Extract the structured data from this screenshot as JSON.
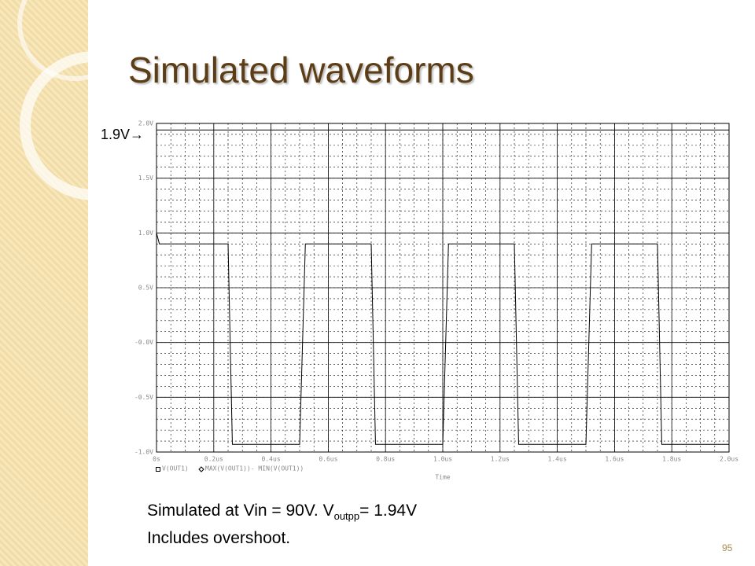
{
  "slide": {
    "title": "Simulated waveforms",
    "page_number": "95",
    "caption": {
      "text": "Simulated at Vin = 90V. V",
      "subscript": "outpp",
      "tail": "= 1.94V",
      "line2": "Includes overshoot."
    }
  },
  "chart_data": {
    "type": "line",
    "annotation": "1.9V→",
    "x_label": "Time",
    "xlim": [
      0,
      2.0
    ],
    "xticks": [
      {
        "value": 0,
        "label": "0s"
      },
      {
        "value": 0.2,
        "label": "0.2us"
      },
      {
        "value": 0.4,
        "label": "0.4us"
      },
      {
        "value": 0.6,
        "label": "0.6us"
      },
      {
        "value": 0.8,
        "label": "0.8us"
      },
      {
        "value": 1.0,
        "label": "1.0us"
      },
      {
        "value": 1.2,
        "label": "1.2us"
      },
      {
        "value": 1.4,
        "label": "1.4us"
      },
      {
        "value": 1.6,
        "label": "1.6us"
      },
      {
        "value": 1.8,
        "label": "1.8us"
      },
      {
        "value": 2.0,
        "label": "2.0us"
      }
    ],
    "ylim": [
      -1.0,
      2.0
    ],
    "yticks": [
      {
        "value": -1.0,
        "label": "-1.0V"
      },
      {
        "value": -0.5,
        "label": "-0.5V"
      },
      {
        "value": 0,
        "label": "-0.0V"
      },
      {
        "value": 0.5,
        "label": "0.5V"
      },
      {
        "value": 1.0,
        "label": "1.0V"
      },
      {
        "value": 1.5,
        "label": "1.5V"
      },
      {
        "value": 2.0,
        "label": "2.0V"
      }
    ],
    "grid": true,
    "series": [
      {
        "name": "V(OUT1)",
        "color": "#000000",
        "x": [
          0,
          0.01,
          0.25,
          0.265,
          0.5,
          0.52,
          0.75,
          0.765,
          1.0,
          1.02,
          1.25,
          1.265,
          1.5,
          1.52,
          1.75,
          1.765,
          2.0
        ],
        "values": [
          1.0,
          0.9,
          0.9,
          -0.93,
          -0.93,
          0.9,
          0.9,
          -0.93,
          -0.93,
          0.9,
          0.9,
          -0.93,
          -0.93,
          0.9,
          0.9,
          -0.93,
          -0.93
        ]
      },
      {
        "name": "MAX(V(OUT1))- MIN(V(OUT1))",
        "color": "#000000",
        "x": [
          0,
          2.0
        ],
        "values": [
          1.94,
          1.94
        ]
      }
    ]
  }
}
